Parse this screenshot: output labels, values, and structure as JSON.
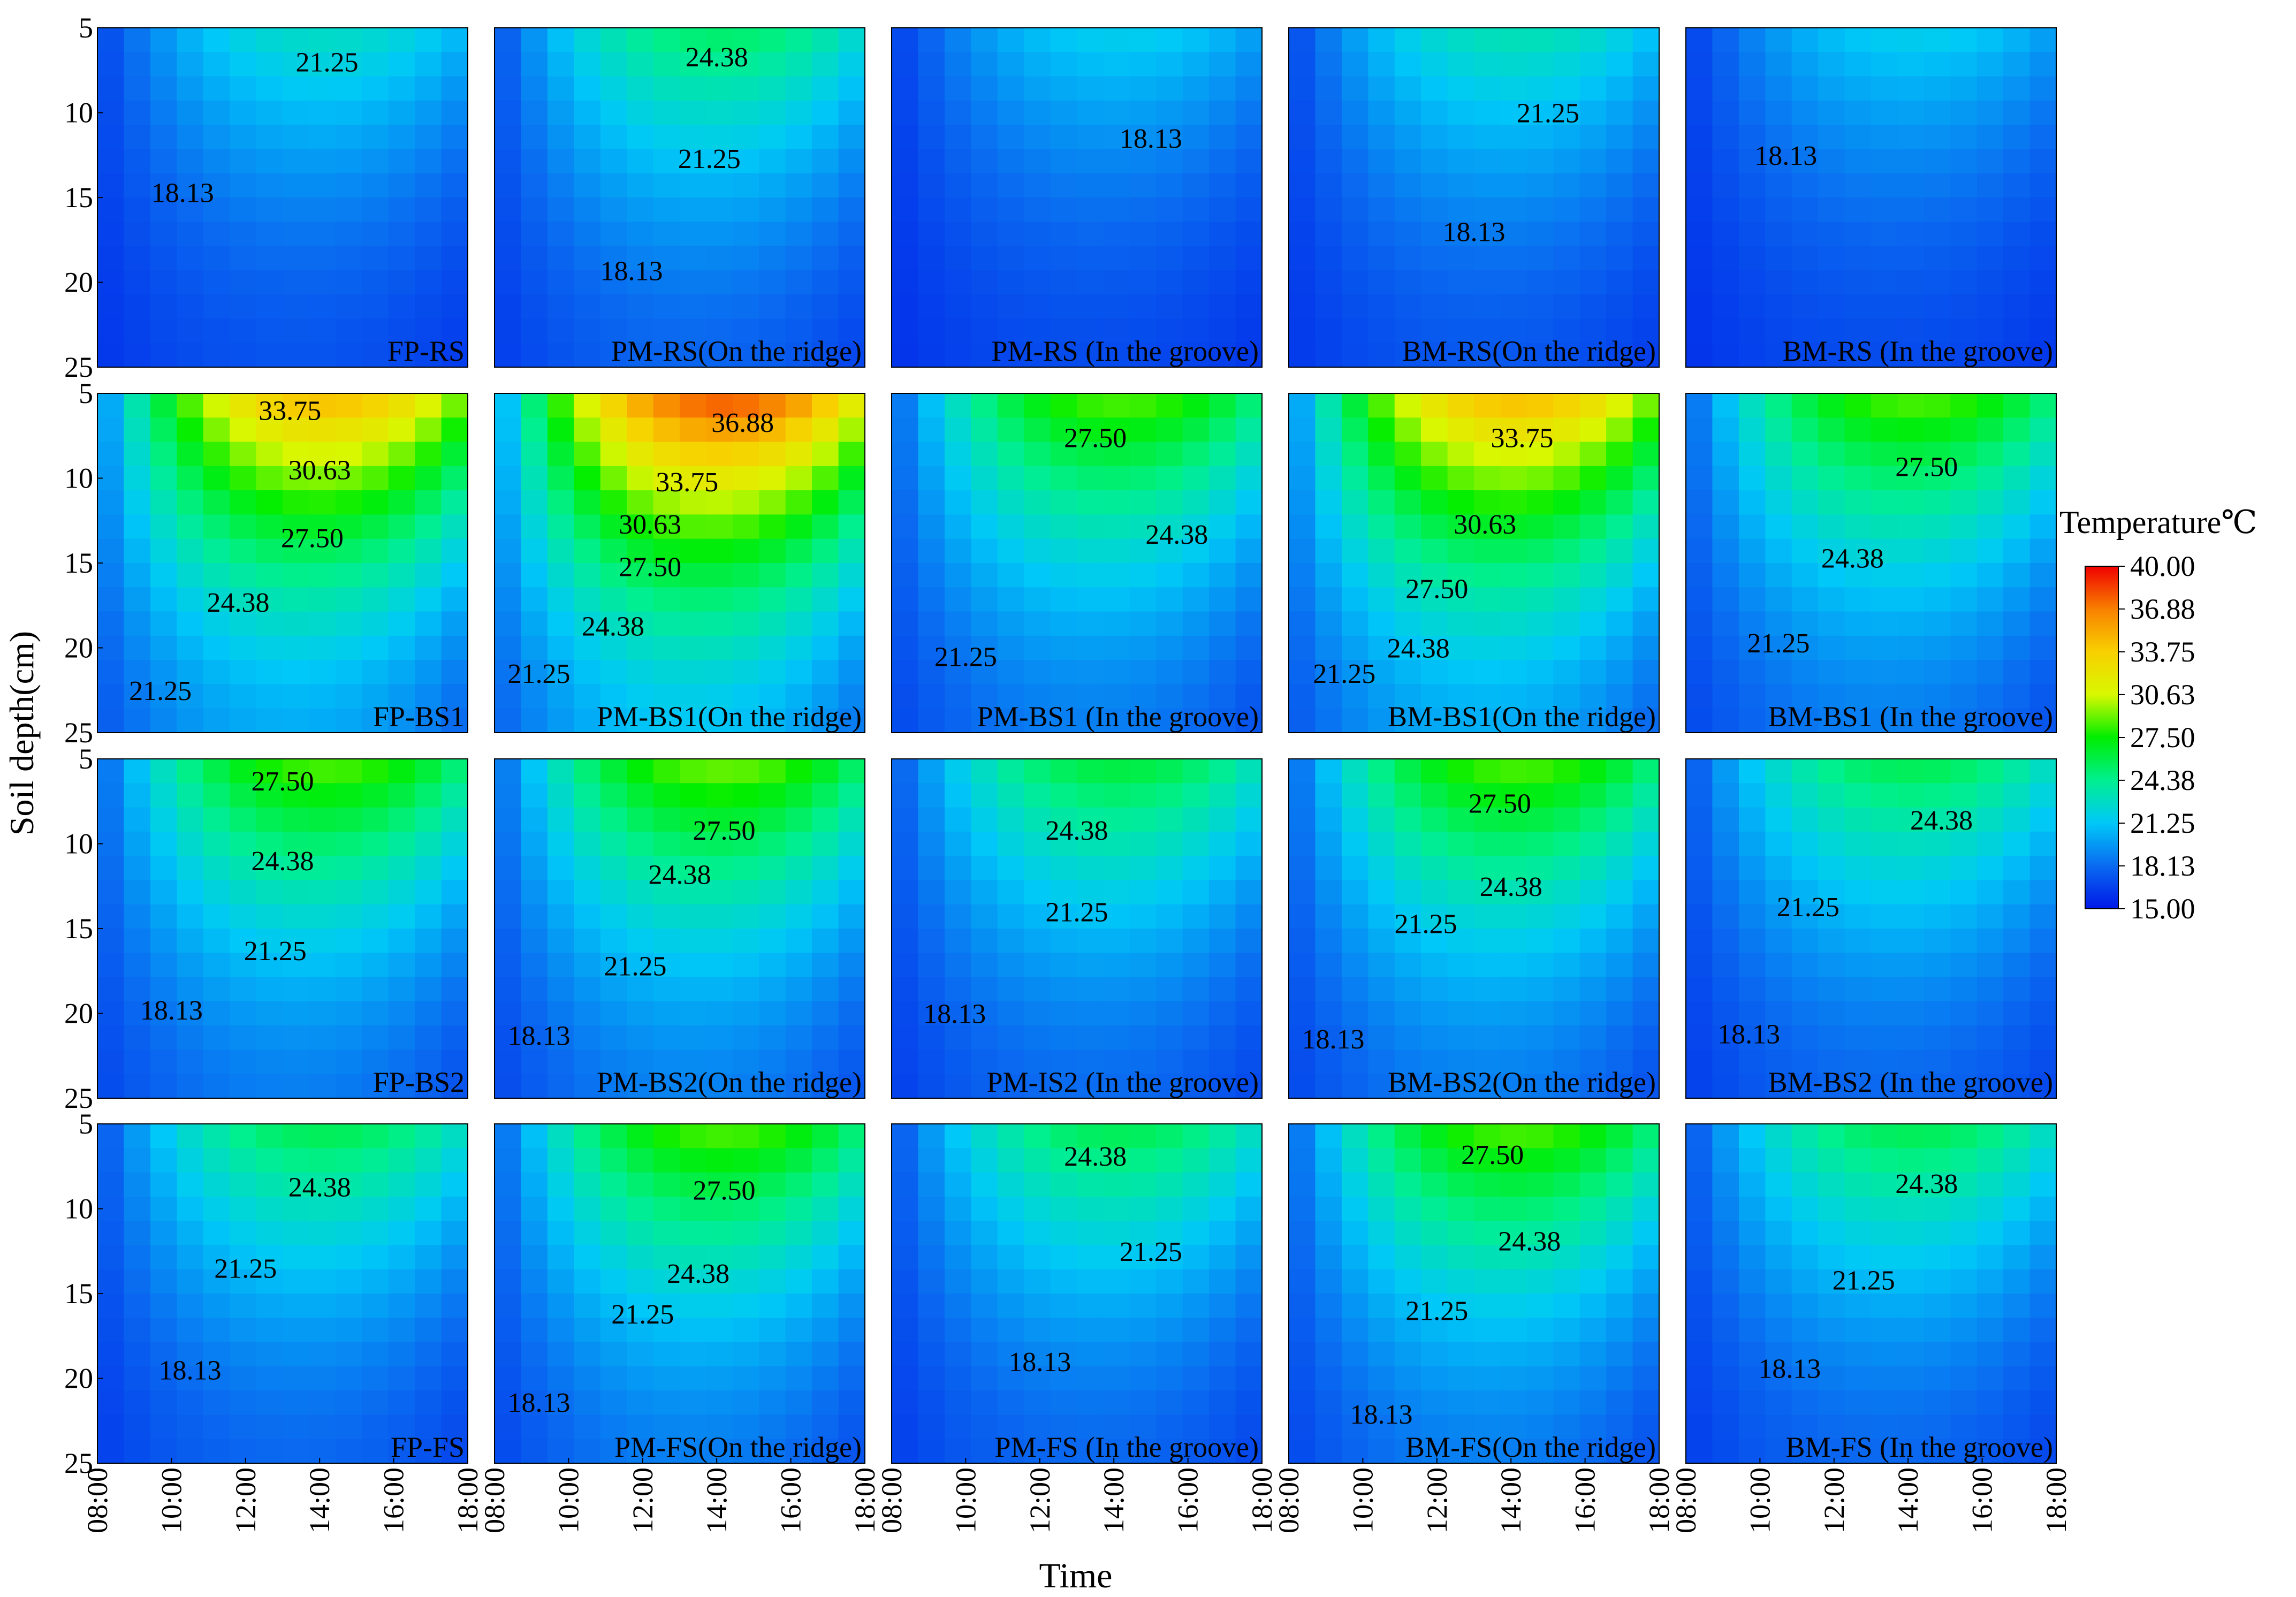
{
  "chart_data": {
    "type": "heatmap",
    "title": "",
    "xlabel": "Time",
    "ylabel": "Soil depth(cm)",
    "x_ticks": [
      "08:00",
      "10:00",
      "12:00",
      "14:00",
      "16:00",
      "18:00"
    ],
    "x_range": [
      8,
      18
    ],
    "y_ticks": [
      "5",
      "10",
      "15",
      "20",
      "25"
    ],
    "y_range": [
      5,
      25
    ],
    "legend": {
      "title": "Temperature℃",
      "range": [
        15,
        40
      ],
      "ticks": [
        "40.00",
        "36.88",
        "33.75",
        "30.63",
        "27.50",
        "24.38",
        "21.25",
        "18.13",
        "15.00"
      ],
      "colors": [
        "#0018e8",
        "#0a6af0",
        "#00c8f8",
        "#00ef90",
        "#00ee00",
        "#d8f800",
        "#f8d000",
        "#f88000",
        "#f00000"
      ],
      "placement": "right"
    },
    "contour_levels": [
      18.13,
      21.25,
      24.38,
      27.5,
      30.63,
      33.75,
      36.88
    ],
    "panels": [
      {
        "label": "FP-RS",
        "peak": 23.0,
        "contours": [
          {
            "text": "21.25",
            "x": 14.2,
            "y": 7.0
          },
          {
            "text": "18.13",
            "x": 10.3,
            "y": 14.7
          }
        ]
      },
      {
        "label": "PM-RS(On the ridge)",
        "peak": 25.5,
        "contours": [
          {
            "text": "24.38",
            "x": 14.0,
            "y": 6.7
          },
          {
            "text": "21.25",
            "x": 13.8,
            "y": 12.7
          },
          {
            "text": "18.13",
            "x": 11.7,
            "y": 19.3
          }
        ]
      },
      {
        "label": "PM-RS (In the groove)",
        "peak": 21.8,
        "contours": [
          {
            "text": "18.13",
            "x": 15.0,
            "y": 11.5
          }
        ]
      },
      {
        "label": "BM-RS(On the ridge)",
        "peak": 23.5,
        "contours": [
          {
            "text": "21.25",
            "x": 15.0,
            "y": 10.0
          },
          {
            "text": "18.13",
            "x": 13.0,
            "y": 17.0
          }
        ]
      },
      {
        "label": "BM-RS (In the groove)",
        "peak": 21.8,
        "contours": [
          {
            "text": "18.13",
            "x": 10.7,
            "y": 12.5
          }
        ]
      },
      {
        "label": "FP-BS1",
        "peak": 35.0,
        "contours": [
          {
            "text": "33.75",
            "x": 13.2,
            "y": 6.0
          },
          {
            "text": "30.63",
            "x": 14.0,
            "y": 9.5
          },
          {
            "text": "27.50",
            "x": 13.8,
            "y": 13.5
          },
          {
            "text": "24.38",
            "x": 11.8,
            "y": 17.3
          },
          {
            "text": "21.25",
            "x": 9.7,
            "y": 22.5
          }
        ]
      },
      {
        "label": "PM-BS1(On the ridge)",
        "peak": 38.5,
        "contours": [
          {
            "text": "36.88",
            "x": 14.7,
            "y": 6.7
          },
          {
            "text": "33.75",
            "x": 13.2,
            "y": 10.2
          },
          {
            "text": "30.63",
            "x": 12.2,
            "y": 12.7
          },
          {
            "text": "27.50",
            "x": 12.2,
            "y": 15.2
          },
          {
            "text": "24.38",
            "x": 11.2,
            "y": 18.7
          },
          {
            "text": "21.25",
            "x": 9.2,
            "y": 21.5
          }
        ]
      },
      {
        "label": "PM-BS1 (In the groove)",
        "peak": 29.0,
        "contours": [
          {
            "text": "27.50",
            "x": 13.5,
            "y": 7.6
          },
          {
            "text": "24.38",
            "x": 15.7,
            "y": 13.3
          },
          {
            "text": "21.25",
            "x": 10.0,
            "y": 20.5
          }
        ]
      },
      {
        "label": "BM-BS1(On the ridge)",
        "peak": 35.0,
        "contours": [
          {
            "text": "33.75",
            "x": 14.3,
            "y": 7.6
          },
          {
            "text": "30.63",
            "x": 13.3,
            "y": 12.7
          },
          {
            "text": "27.50",
            "x": 12.0,
            "y": 16.5
          },
          {
            "text": "24.38",
            "x": 11.5,
            "y": 20.0
          },
          {
            "text": "21.25",
            "x": 9.5,
            "y": 21.5
          }
        ]
      },
      {
        "label": "BM-BS1 (In the groove)",
        "peak": 29.0,
        "contours": [
          {
            "text": "27.50",
            "x": 14.5,
            "y": 9.3
          },
          {
            "text": "24.38",
            "x": 12.5,
            "y": 14.7
          },
          {
            "text": "21.25",
            "x": 10.5,
            "y": 19.7
          }
        ]
      },
      {
        "label": "FP-BS2",
        "peak": 29.0,
        "contours": [
          {
            "text": "27.50",
            "x": 13.0,
            "y": 6.3
          },
          {
            "text": "24.38",
            "x": 13.0,
            "y": 11.0
          },
          {
            "text": "21.25",
            "x": 12.8,
            "y": 16.3
          },
          {
            "text": "18.13",
            "x": 10.0,
            "y": 19.8
          }
        ]
      },
      {
        "label": "PM-BS2(On the ridge)",
        "peak": 29.5,
        "contours": [
          {
            "text": "27.50",
            "x": 14.2,
            "y": 9.2
          },
          {
            "text": "24.38",
            "x": 13.0,
            "y": 11.8
          },
          {
            "text": "21.25",
            "x": 11.8,
            "y": 17.2
          },
          {
            "text": "18.13",
            "x": 9.2,
            "y": 21.3
          }
        ]
      },
      {
        "label": "PM-IS2 (In the groove)",
        "peak": 26.5,
        "contours": [
          {
            "text": "24.38",
            "x": 13.0,
            "y": 9.2
          },
          {
            "text": "21.25",
            "x": 13.0,
            "y": 14.0
          },
          {
            "text": "18.13",
            "x": 9.7,
            "y": 20.0
          }
        ]
      },
      {
        "label": "BM-BS2(On the ridge)",
        "peak": 29.0,
        "contours": [
          {
            "text": "27.50",
            "x": 13.7,
            "y": 7.6
          },
          {
            "text": "24.38",
            "x": 14.0,
            "y": 12.5
          },
          {
            "text": "21.25",
            "x": 11.7,
            "y": 14.7
          },
          {
            "text": "18.13",
            "x": 9.2,
            "y": 21.5
          }
        ]
      },
      {
        "label": "BM-BS2 (In the groove)",
        "peak": 26.0,
        "contours": [
          {
            "text": "24.38",
            "x": 14.9,
            "y": 8.6
          },
          {
            "text": "21.25",
            "x": 11.3,
            "y": 13.7
          },
          {
            "text": "18.13",
            "x": 9.7,
            "y": 21.2
          }
        ]
      },
      {
        "label": "FP-FS",
        "peak": 26.0,
        "contours": [
          {
            "text": "24.38",
            "x": 14.0,
            "y": 8.7
          },
          {
            "text": "21.25",
            "x": 12.0,
            "y": 13.5
          },
          {
            "text": "18.13",
            "x": 10.5,
            "y": 19.5
          }
        ]
      },
      {
        "label": "PM-FS(On the ridge)",
        "peak": 29.0,
        "contours": [
          {
            "text": "27.50",
            "x": 14.2,
            "y": 8.9
          },
          {
            "text": "24.38",
            "x": 13.5,
            "y": 13.8
          },
          {
            "text": "21.25",
            "x": 12.0,
            "y": 16.2
          },
          {
            "text": "18.13",
            "x": 9.2,
            "y": 21.4
          }
        ]
      },
      {
        "label": "PM-FS (In the groove)",
        "peak": 26.0,
        "contours": [
          {
            "text": "24.38",
            "x": 13.5,
            "y": 6.9
          },
          {
            "text": "21.25",
            "x": 15.0,
            "y": 12.5
          },
          {
            "text": "18.13",
            "x": 12.0,
            "y": 19.0
          }
        ]
      },
      {
        "label": "BM-FS(On the ridge)",
        "peak": 29.0,
        "contours": [
          {
            "text": "27.50",
            "x": 13.5,
            "y": 6.8
          },
          {
            "text": "24.38",
            "x": 14.5,
            "y": 11.9
          },
          {
            "text": "21.25",
            "x": 12.0,
            "y": 16.0
          },
          {
            "text": "18.13",
            "x": 10.5,
            "y": 22.1
          }
        ]
      },
      {
        "label": "BM-FS (In the groove)",
        "peak": 26.0,
        "contours": [
          {
            "text": "24.38",
            "x": 14.5,
            "y": 8.5
          },
          {
            "text": "21.25",
            "x": 12.8,
            "y": 14.2
          },
          {
            "text": "18.13",
            "x": 10.8,
            "y": 19.4
          }
        ]
      }
    ]
  }
}
